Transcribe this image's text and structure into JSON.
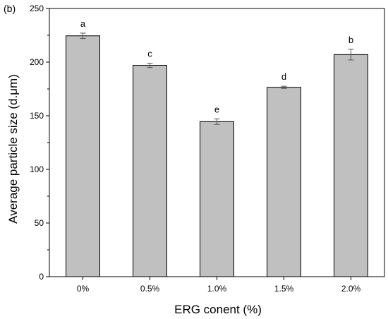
{
  "chart_data": {
    "type": "bar",
    "panel_label": "(b)",
    "categories": [
      "0%",
      "0.5%",
      "1.0%",
      "1.5%",
      "2.0%"
    ],
    "values": [
      224.5,
      197,
      144.5,
      176.5,
      207
    ],
    "errors": [
      2.5,
      2,
      2.5,
      1,
      5
    ],
    "significance": [
      "a",
      "c",
      "e",
      "d",
      "b"
    ],
    "xlabel": "ERG conent (%)",
    "ylabel": "Average particle size (d.μm)",
    "ylim": [
      0,
      250
    ],
    "yticks": [
      0,
      50,
      100,
      150,
      200,
      250
    ],
    "yticks_labels": [
      "0",
      "50",
      "100",
      "150",
      "200",
      "250"
    ],
    "bar_color": "#c0c0c0",
    "grid": false,
    "legend": "none"
  }
}
